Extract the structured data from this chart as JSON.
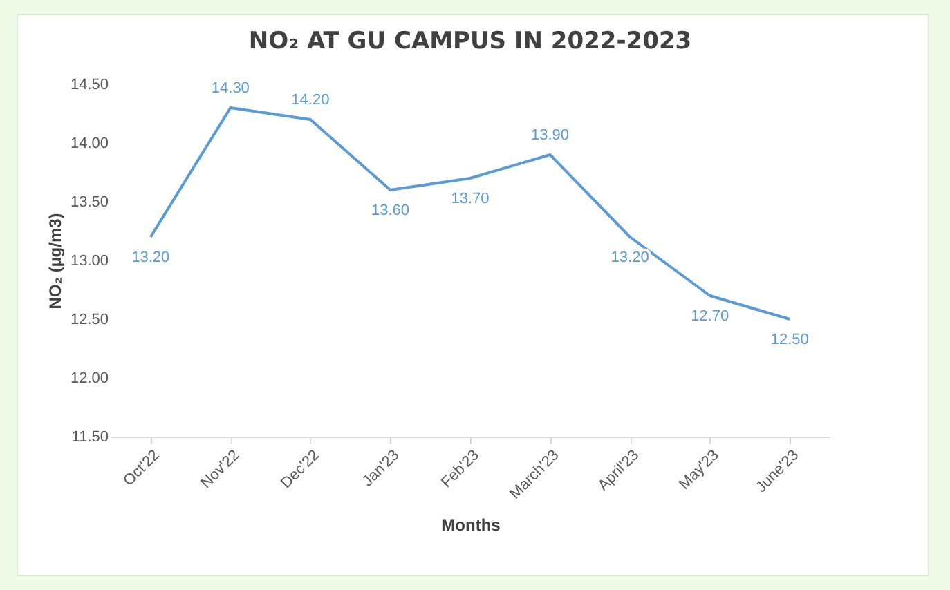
{
  "chart_data": {
    "type": "line",
    "title": "NO₂ AT GU CAMPUS IN 2022-2023",
    "xlabel": "Months",
    "ylabel": "NO₂ (µg/m3)",
    "categories": [
      "Oct'22",
      "Nov'22",
      "Dec'22",
      "Jan'23",
      "Feb'23",
      "March'23",
      "April'23",
      "May'23",
      "June'23"
    ],
    "series": [
      {
        "color": "#5b9bd5",
        "values": [
          13.2,
          14.3,
          14.2,
          13.6,
          13.7,
          13.9,
          13.2,
          12.7,
          12.5
        ],
        "value_labels": [
          "13.20",
          "14.30",
          "14.20",
          "13.60",
          "13.70",
          "13.90",
          "13.20",
          "12.70",
          "12.50"
        ]
      }
    ],
    "ylim": [
      11.5,
      14.5
    ],
    "yticks": [
      {
        "value": 11.5,
        "label": "11.50"
      },
      {
        "value": 12,
        "label": "12.00"
      },
      {
        "value": 12.5,
        "label": "12.50"
      },
      {
        "value": 13,
        "label": "13.00"
      },
      {
        "value": 13.5,
        "label": "13.50"
      },
      {
        "value": 14,
        "label": "14.00"
      },
      {
        "value": 14.5,
        "label": "14.50"
      }
    ],
    "grid": false,
    "marker": "none",
    "line_style": "solid"
  }
}
